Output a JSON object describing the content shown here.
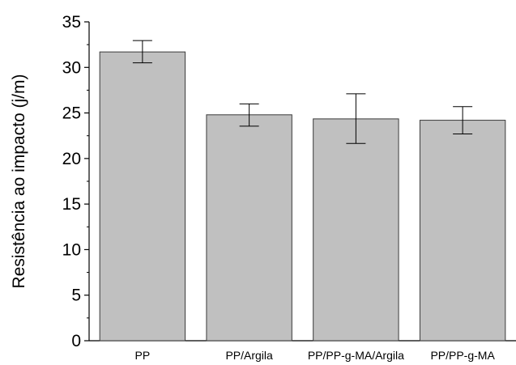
{
  "chart_data": {
    "type": "bar",
    "title": "",
    "xlabel": "",
    "ylabel": "Resistência ao impacto (j/m)",
    "categories": [
      "PP",
      "PP/Argila",
      "PP/PP-g-MA/Argila",
      "PP/PP-g-MA"
    ],
    "values": [
      31.7,
      24.8,
      24.35,
      24.2
    ],
    "error_low": [
      30.5,
      23.55,
      21.65,
      22.7
    ],
    "error_high": [
      32.95,
      26.0,
      27.1,
      25.7
    ],
    "ylim": [
      0,
      35
    ],
    "y_ticks": [
      0,
      5,
      10,
      15,
      20,
      25,
      30,
      35
    ],
    "grid": false,
    "bar_color": "#c0c0c0",
    "edge_color": "#3a3a3a"
  }
}
